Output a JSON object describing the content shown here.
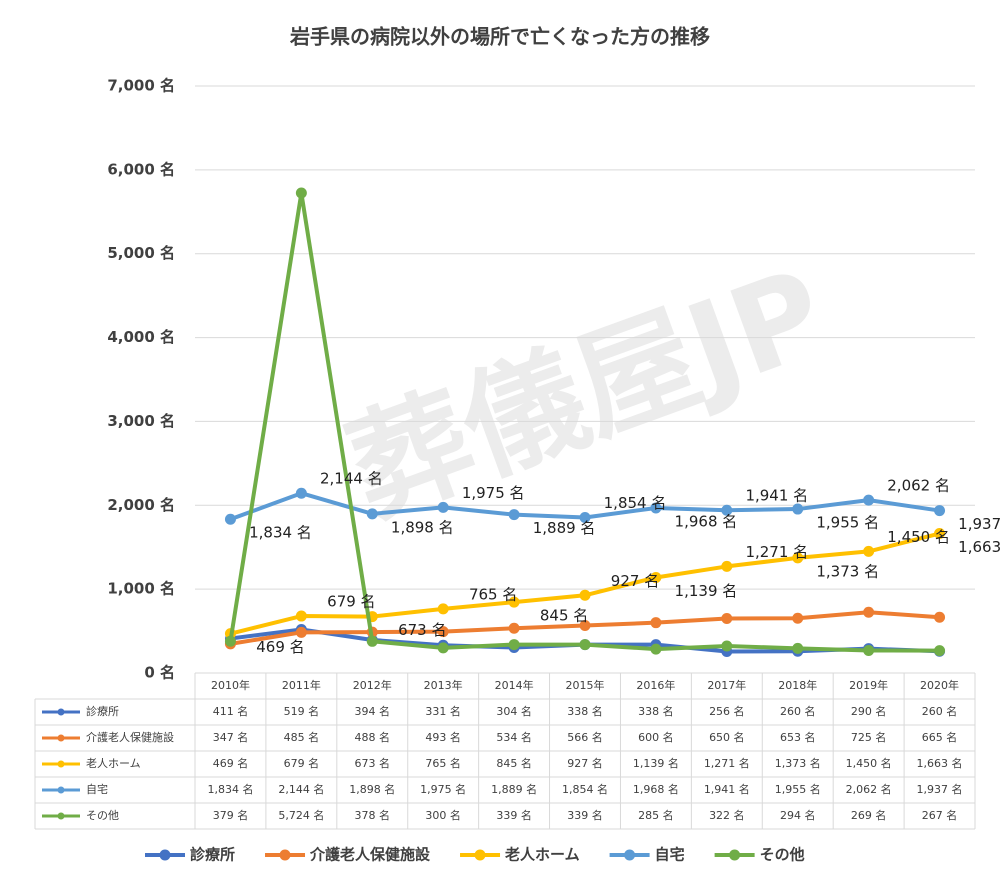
{
  "chart_data": {
    "type": "line",
    "title": "岩手県の病院以外の場所で亡くなった方の推移",
    "watermark": "葬儀屋JP",
    "categories": [
      "2010年",
      "2011年",
      "2012年",
      "2013年",
      "2014年",
      "2015年",
      "2016年",
      "2017年",
      "2018年",
      "2019年",
      "2020年"
    ],
    "ylim": [
      0,
      7000
    ],
    "yticks": [
      {
        "value": 0,
        "label": "0 名"
      },
      {
        "value": 1000,
        "label": "1,000 名"
      },
      {
        "value": 2000,
        "label": "2,000 名"
      },
      {
        "value": 3000,
        "label": "3,000 名"
      },
      {
        "value": 4000,
        "label": "4,000 名"
      },
      {
        "value": 5000,
        "label": "5,000 名"
      },
      {
        "value": 6000,
        "label": "6,000 名"
      },
      {
        "value": 7000,
        "label": "7,000 名"
      }
    ],
    "grid": true,
    "legend": "bottom",
    "data_table": true,
    "series": [
      {
        "name": "診療所",
        "color": "#4472c4",
        "data_labels": false,
        "values": [
          411,
          519,
          394,
          331,
          304,
          338,
          338,
          256,
          260,
          290,
          260
        ],
        "value_labels": [
          "411 名",
          "519 名",
          "394 名",
          "331 名",
          "304 名",
          "338 名",
          "338 名",
          "256 名",
          "260 名",
          "290 名",
          "260 名"
        ]
      },
      {
        "name": "介護老人保健施設",
        "color": "#ed7d31",
        "data_labels": false,
        "values": [
          347,
          485,
          488,
          493,
          534,
          566,
          600,
          650,
          653,
          725,
          665
        ],
        "value_labels": [
          "347 名",
          "485 名",
          "488 名",
          "493 名",
          "534 名",
          "566 名",
          "600 名",
          "650 名",
          "653 名",
          "725 名",
          "665 名"
        ]
      },
      {
        "name": "老人ホーム",
        "color": "#ffc000",
        "data_labels": true,
        "values": [
          469,
          679,
          673,
          765,
          845,
          927,
          1139,
          1271,
          1373,
          1450,
          1663
        ],
        "value_labels": [
          "469 名",
          "679 名",
          "673 名",
          "765 名",
          "845 名",
          "927 名",
          "1,139 名",
          "1,271 名",
          "1,373 名",
          "1,450 名",
          "1,663 名"
        ]
      },
      {
        "name": "自宅",
        "color": "#5b9bd5",
        "data_labels": true,
        "values": [
          1834,
          2144,
          1898,
          1975,
          1889,
          1854,
          1968,
          1941,
          1955,
          2062,
          1937
        ],
        "value_labels": [
          "1,834 名",
          "2,144 名",
          "1,898 名",
          "1,975 名",
          "1,889 名",
          "1,854 名",
          "1,968 名",
          "1,941 名",
          "1,955 名",
          "2,062 名",
          "1,937 名"
        ]
      },
      {
        "name": "その他",
        "color": "#70ad47",
        "data_labels": false,
        "values": [
          379,
          5724,
          378,
          300,
          339,
          339,
          285,
          322,
          294,
          269,
          267
        ],
        "value_labels": [
          "379 名",
          "5,724 名",
          "378 名",
          "300 名",
          "339 名",
          "339 名",
          "285 名",
          "322 名",
          "294 名",
          "269 名",
          "267 名"
        ]
      }
    ]
  }
}
